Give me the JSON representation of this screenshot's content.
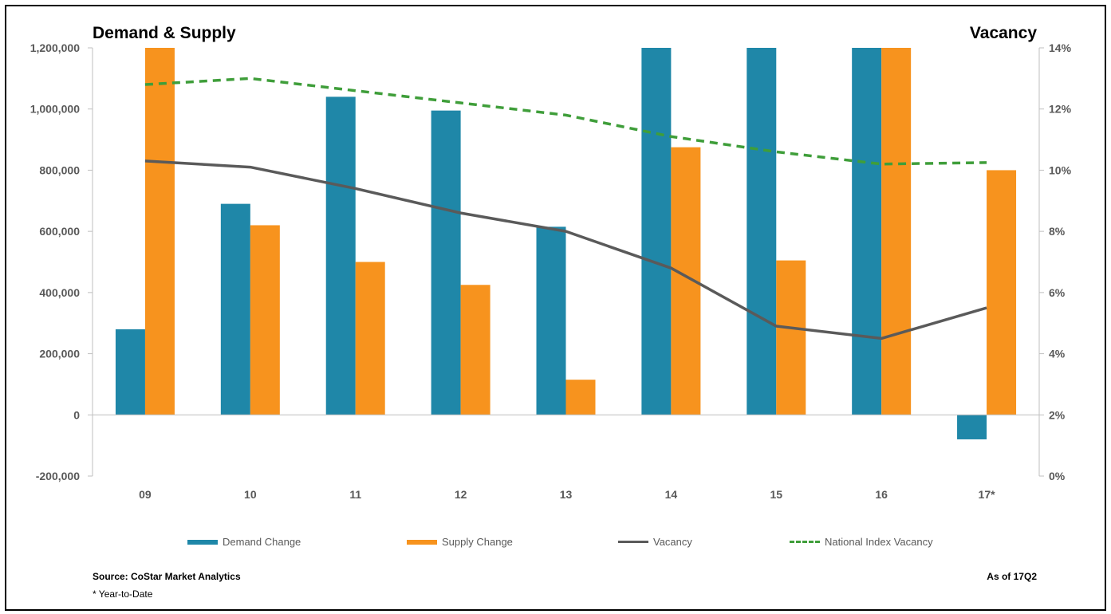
{
  "chart_data": {
    "type": "bar",
    "title_left": "Demand & Supply",
    "title_right": "Vacancy",
    "categories": [
      "09",
      "10",
      "11",
      "12",
      "13",
      "14",
      "15",
      "16",
      "17*"
    ],
    "left_axis": {
      "ylim": [
        -200000,
        1200000
      ],
      "ticks": [
        -200000,
        0,
        200000,
        400000,
        600000,
        800000,
        1000000,
        1200000
      ],
      "tick_labels": [
        "-200,000",
        "0",
        "200,000",
        "400,000",
        "600,000",
        "800,000",
        "1,000,000",
        "1,200,000"
      ]
    },
    "right_axis": {
      "ylim": [
        0,
        14
      ],
      "ticks": [
        0,
        2,
        4,
        6,
        8,
        10,
        12,
        14
      ],
      "tick_labels": [
        "0%",
        "2%",
        "4%",
        "6%",
        "8%",
        "10%",
        "12%",
        "14%"
      ]
    },
    "series": [
      {
        "name": "Demand Change",
        "type": "bar",
        "axis": "left",
        "color": "#1f87a8",
        "values": [
          280000,
          690000,
          1040000,
          995000,
          615000,
          1200000,
          1200000,
          1200000,
          -80000
        ]
      },
      {
        "name": "Supply Change",
        "type": "bar",
        "axis": "left",
        "color": "#f7931e",
        "values": [
          1200000,
          620000,
          500000,
          425000,
          115000,
          875000,
          505000,
          1200000,
          800000
        ]
      },
      {
        "name": "Vacancy",
        "type": "line",
        "axis": "right",
        "color": "#5a5a5a",
        "values": [
          10.3,
          10.1,
          9.4,
          8.6,
          8.0,
          6.8,
          4.9,
          4.5,
          5.5
        ]
      },
      {
        "name": "National Index Vacancy",
        "type": "dashed-line",
        "axis": "right",
        "color": "#3f9e3a",
        "values": [
          12.8,
          13.0,
          12.6,
          12.2,
          11.8,
          11.1,
          10.6,
          10.2,
          10.25
        ]
      }
    ]
  },
  "footer": {
    "source": "Source: CoStar Market Analytics",
    "note": "* Year-to-Date",
    "as_of": "As of 17Q2"
  }
}
